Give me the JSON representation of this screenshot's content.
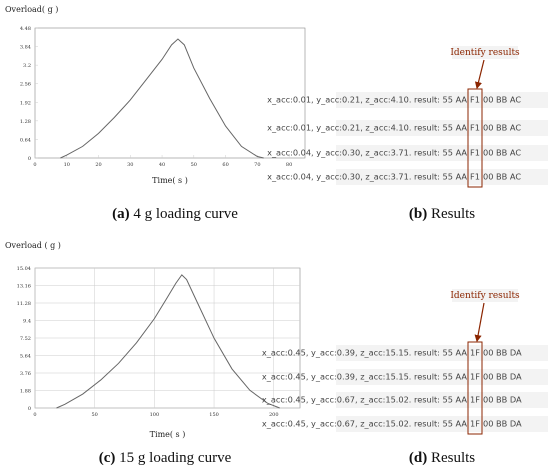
{
  "chart_data": [
    {
      "type": "line",
      "y_label": "Overload( g )",
      "x_label": "Time( s )",
      "color": "#666666",
      "grid": false,
      "x": [
        8,
        10,
        15,
        20,
        25,
        30,
        35,
        40,
        43,
        45,
        47,
        50,
        55,
        60,
        65,
        70,
        72
      ],
      "values": [
        0,
        0.1,
        0.4,
        0.85,
        1.4,
        2.0,
        2.7,
        3.4,
        3.9,
        4.1,
        3.9,
        3.1,
        2.05,
        1.1,
        0.4,
        0.05,
        0
      ],
      "xlim": [
        0,
        85
      ],
      "xticks": [
        0,
        10,
        20,
        30,
        40,
        50,
        60,
        70,
        80
      ],
      "ylim": [
        0,
        4.48
      ],
      "yticks": [
        0,
        0.64,
        1.28,
        1.92,
        2.56,
        3.2,
        3.84,
        4.48
      ]
    },
    {
      "type": "line",
      "y_label": "Overload ( g )",
      "x_label": "Time( s )",
      "color": "#666666",
      "grid": true,
      "x": [
        18,
        25,
        40,
        55,
        70,
        85,
        100,
        110,
        118,
        123,
        127,
        135,
        150,
        165,
        180,
        195,
        205
      ],
      "values": [
        0,
        0.4,
        1.5,
        3.0,
        4.8,
        7.0,
        9.6,
        11.7,
        13.4,
        14.3,
        13.8,
        11.6,
        7.5,
        4.2,
        1.9,
        0.5,
        0
      ],
      "xlim": [
        0,
        222
      ],
      "xticks": [
        0,
        50,
        100,
        150,
        200
      ],
      "ylim": [
        0,
        15.04
      ],
      "yticks": [
        0,
        1.88,
        3.76,
        5.64,
        7.52,
        9.4,
        11.28,
        13.16,
        15.04
      ]
    }
  ],
  "results": [
    {
      "annotation": "Identify results",
      "rows": [
        {
          "prefix": "x_acc:0.01, y_acc:0.21, z_acc:4.10. result: 55 AA",
          "code": "F1",
          "suffix": "00 BB AC"
        },
        {
          "prefix": "x_acc:0.01, y_acc:0.21, z_acc:4.10. result: 55 AA",
          "code": "F1",
          "suffix": "00 BB AC"
        },
        {
          "prefix": "x_acc:0.04, y_acc:0.30, z_acc:3.71. result: 55 AA",
          "code": "F1",
          "suffix": "00 BB AC"
        },
        {
          "prefix": "x_acc:0.04, y_acc:0.30, z_acc:3.71. result: 55 AA",
          "code": "F1",
          "suffix": "00 BB AC"
        }
      ]
    },
    {
      "annotation": "Identify results",
      "rows": [
        {
          "prefix": "x_acc:0.45, y_acc:0.39, z_acc:15.15. result: 55 AA",
          "code": "1F",
          "suffix": "00 BB DA"
        },
        {
          "prefix": "x_acc:0.45, y_acc:0.39, z_acc:15.15. result: 55 AA",
          "code": "1F",
          "suffix": "00 BB DA"
        },
        {
          "prefix": "x_acc:0.45, y_acc:0.67, z_acc:15.02. result: 55 AA",
          "code": "1F",
          "suffix": "00 BB DA"
        },
        {
          "prefix": "x_acc:0.45, y_acc:0.67, z_acc:15.02. result: 55 AA",
          "code": "1F",
          "suffix": "00 BB DA"
        }
      ]
    }
  ],
  "captions": [
    {
      "label": "(a)",
      "text": "4 g loading curve"
    },
    {
      "label": "(b)",
      "text": "Results"
    },
    {
      "label": "(c)",
      "text": "15 g loading curve"
    },
    {
      "label": "(d)",
      "text": "Results"
    }
  ]
}
